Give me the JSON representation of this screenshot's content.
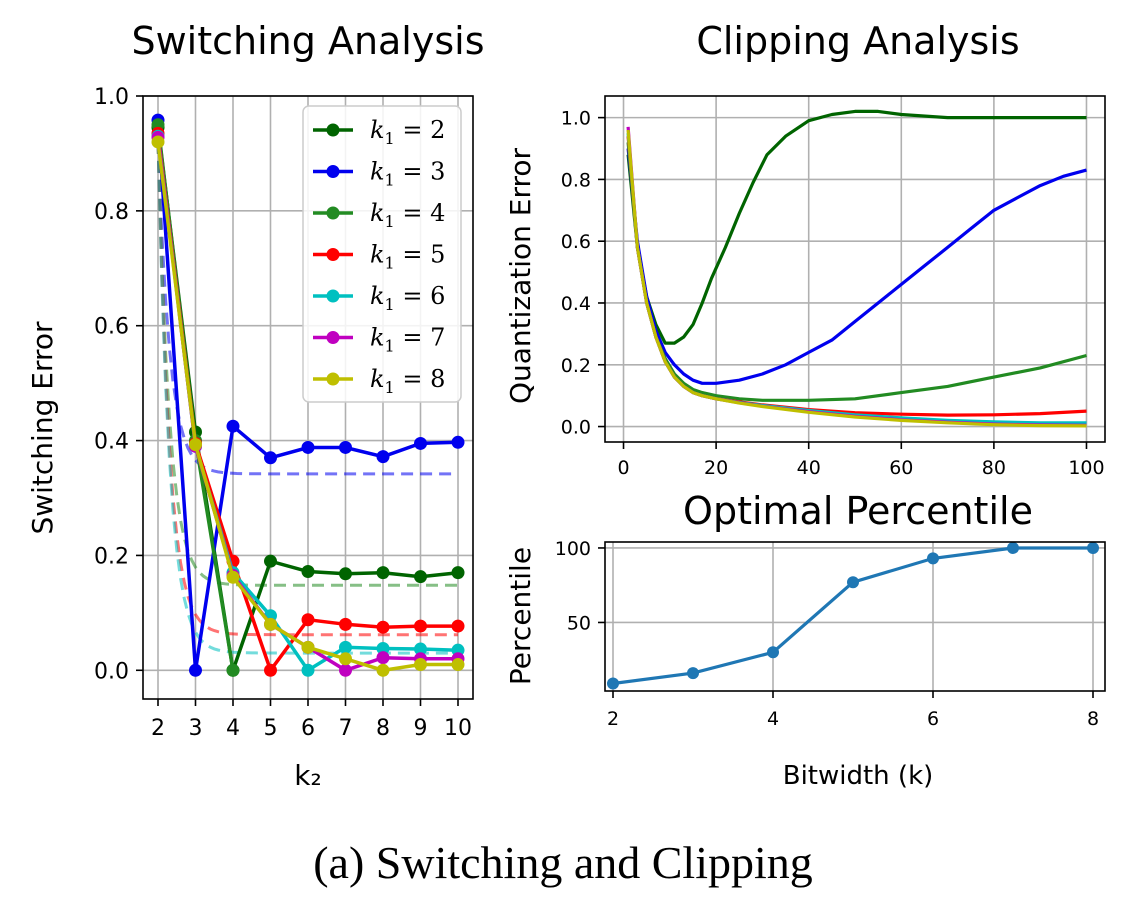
{
  "caption": "(a) Switching and Clipping",
  "chart_data": [
    {
      "type": "line",
      "title": "Switching Analysis",
      "xlabel": "k₂",
      "ylabel": "Switching Error",
      "xlim": [
        1.6,
        10.4
      ],
      "ylim": [
        -0.05,
        1.0
      ],
      "x": [
        2,
        3,
        4,
        5,
        6,
        7,
        8,
        9,
        10
      ],
      "xticks": [
        "2",
        "3",
        "4",
        "5",
        "6",
        "7",
        "8",
        "9",
        "10"
      ],
      "yticks": [
        0.0,
        0.2,
        0.4,
        0.6,
        0.8,
        1.0
      ],
      "ytick_labels": [
        "0.0",
        "0.2",
        "0.4",
        "0.6",
        "0.8",
        "1.0"
      ],
      "grid": true,
      "legend_position": "top-right",
      "series": [
        {
          "name": "k₁ = 2",
          "legend_sub": "1",
          "legend_text": "= 2",
          "color": "#006400",
          "values": [
            0.945,
            0.415,
            0.0,
            0.19,
            0.172,
            0.168,
            0.17,
            0.163,
            0.17
          ]
        },
        {
          "name": "k₁ = 3",
          "legend_sub": "1",
          "legend_text": "= 3",
          "color": "#0000ee",
          "values": [
            0.958,
            0.0,
            0.425,
            0.37,
            0.388,
            0.388,
            0.372,
            0.395,
            0.397
          ]
        },
        {
          "name": "k₁ = 4",
          "legend_sub": "1",
          "legend_text": "= 4",
          "color": "#228b22",
          "values": [
            0.95,
            0.4,
            0.0,
            null,
            null,
            null,
            null,
            null,
            null
          ]
        },
        {
          "name": "k₁ = 5",
          "legend_sub": "1",
          "legend_text": "= 5",
          "color": "#ff0000",
          "values": [
            0.935,
            0.395,
            0.19,
            0.0,
            0.088,
            0.08,
            0.075,
            0.077,
            0.077
          ]
        },
        {
          "name": "k₁ = 6",
          "legend_sub": "1",
          "legend_text": "= 6",
          "color": "#00c0c0",
          "values": [
            0.93,
            0.39,
            0.17,
            0.095,
            0.0,
            0.04,
            0.038,
            0.037,
            0.035
          ]
        },
        {
          "name": "k₁ = 7",
          "legend_sub": "1",
          "legend_text": "= 7",
          "color": "#c000c0",
          "values": [
            0.928,
            0.39,
            0.165,
            0.08,
            0.04,
            0.0,
            0.022,
            0.02,
            0.02
          ]
        },
        {
          "name": "k₁ = 8",
          "legend_sub": "1",
          "legend_text": "= 8",
          "color": "#bfbf00",
          "values": [
            0.92,
            0.393,
            0.162,
            0.08,
            0.04,
            0.02,
            0.0,
            0.01,
            0.01
          ]
        }
      ],
      "dashed_asymptotes": [
        {
          "color": "#0000ee",
          "from": 0.92,
          "to": 0.342
        },
        {
          "color": "#228b22",
          "from": 0.92,
          "to": 0.148
        },
        {
          "color": "#ff0000",
          "from": 0.92,
          "to": 0.062
        },
        {
          "color": "#00c0c0",
          "from": 0.92,
          "to": 0.03
        }
      ]
    },
    {
      "type": "line",
      "title": "Clipping Analysis",
      "xlabel": "",
      "ylabel": "Quantization Error",
      "xlim": [
        -4,
        104
      ],
      "ylim": [
        -0.05,
        1.07
      ],
      "xticks": [
        0,
        20,
        40,
        60,
        80,
        100
      ],
      "xtick_labels": [
        "0",
        "20",
        "40",
        "60",
        "80",
        "100"
      ],
      "yticks": [
        0.0,
        0.2,
        0.4,
        0.6,
        0.8,
        1.0
      ],
      "ytick_labels": [
        "0.0",
        "0.2",
        "0.4",
        "0.6",
        "0.8",
        "1.0"
      ],
      "grid": true,
      "series": [
        {
          "color": "#006400",
          "x": [
            1,
            3,
            5,
            7,
            9,
            11,
            13,
            15,
            17,
            19,
            22,
            25,
            28,
            31,
            35,
            40,
            45,
            50,
            55,
            60,
            70,
            80,
            90,
            100
          ],
          "values": [
            0.88,
            0.58,
            0.42,
            0.33,
            0.27,
            0.27,
            0.29,
            0.33,
            0.4,
            0.48,
            0.58,
            0.69,
            0.79,
            0.88,
            0.94,
            0.99,
            1.01,
            1.02,
            1.02,
            1.01,
            1.0,
            1.0,
            1.0,
            1.0
          ]
        },
        {
          "color": "#0000ee",
          "x": [
            1,
            3,
            5,
            7,
            9,
            11,
            13,
            15,
            17,
            20,
            25,
            30,
            35,
            40,
            45,
            50,
            55,
            60,
            65,
            70,
            75,
            80,
            85,
            90,
            95,
            100
          ],
          "values": [
            0.9,
            0.6,
            0.42,
            0.31,
            0.24,
            0.2,
            0.17,
            0.15,
            0.14,
            0.14,
            0.15,
            0.17,
            0.2,
            0.24,
            0.28,
            0.34,
            0.4,
            0.46,
            0.52,
            0.58,
            0.64,
            0.7,
            0.74,
            0.78,
            0.81,
            0.83
          ]
        },
        {
          "color": "#228b22",
          "x": [
            1,
            3,
            5,
            7,
            9,
            11,
            13,
            15,
            17,
            20,
            25,
            30,
            40,
            50,
            60,
            70,
            80,
            90,
            100
          ],
          "values": [
            0.92,
            0.58,
            0.4,
            0.29,
            0.22,
            0.17,
            0.14,
            0.12,
            0.11,
            0.1,
            0.09,
            0.085,
            0.085,
            0.09,
            0.11,
            0.13,
            0.16,
            0.19,
            0.23
          ]
        },
        {
          "color": "#ff0000",
          "x": [
            1,
            3,
            5,
            7,
            9,
            11,
            13,
            15,
            17,
            20,
            25,
            30,
            40,
            50,
            60,
            70,
            80,
            90,
            100
          ],
          "values": [
            0.94,
            0.58,
            0.4,
            0.29,
            0.21,
            0.16,
            0.13,
            0.11,
            0.1,
            0.09,
            0.08,
            0.07,
            0.055,
            0.045,
            0.04,
            0.037,
            0.038,
            0.042,
            0.05
          ]
        },
        {
          "color": "#00c0c0",
          "x": [
            1,
            3,
            5,
            7,
            9,
            11,
            13,
            15,
            17,
            20,
            25,
            30,
            40,
            50,
            60,
            70,
            80,
            90,
            100
          ],
          "values": [
            0.95,
            0.58,
            0.4,
            0.29,
            0.21,
            0.16,
            0.13,
            0.11,
            0.1,
            0.09,
            0.078,
            0.068,
            0.052,
            0.038,
            0.028,
            0.02,
            0.015,
            0.012,
            0.012
          ]
        },
        {
          "color": "#c000c0",
          "x": [
            1,
            3,
            5,
            7,
            9,
            11,
            13,
            15,
            17,
            20,
            25,
            30,
            40,
            50,
            60,
            70,
            80,
            90,
            100
          ],
          "values": [
            0.97,
            0.58,
            0.4,
            0.29,
            0.21,
            0.16,
            0.13,
            0.11,
            0.1,
            0.09,
            0.077,
            0.066,
            0.048,
            0.033,
            0.022,
            0.014,
            0.008,
            0.005,
            0.004
          ]
        },
        {
          "color": "#bfbf00",
          "x": [
            1,
            3,
            5,
            7,
            9,
            11,
            13,
            15,
            17,
            20,
            25,
            30,
            40,
            50,
            60,
            70,
            80,
            90,
            100
          ],
          "values": [
            0.96,
            0.58,
            0.4,
            0.29,
            0.21,
            0.16,
            0.13,
            0.11,
            0.1,
            0.09,
            0.076,
            0.065,
            0.046,
            0.031,
            0.02,
            0.012,
            0.006,
            0.003,
            0.002
          ]
        }
      ]
    },
    {
      "type": "line",
      "title": "Optimal Percentile",
      "xlabel": "Bitwidth (k)",
      "ylabel": "Percentile",
      "xlim": [
        1.9,
        8.15
      ],
      "ylim": [
        4,
        104
      ],
      "x": [
        2,
        3,
        4,
        5,
        6,
        7,
        8
      ],
      "values": [
        9,
        16,
        30,
        77,
        93,
        100,
        100
      ],
      "xticks": [
        2,
        4,
        6,
        8
      ],
      "xtick_labels": [
        "2",
        "4",
        "6",
        "8"
      ],
      "yticks": [
        50,
        100
      ],
      "ytick_labels": [
        "50",
        "100"
      ],
      "grid": true,
      "series": [
        {
          "color": "#1f77b4",
          "values": [
            9,
            16,
            30,
            77,
            93,
            100,
            100
          ]
        }
      ]
    }
  ]
}
